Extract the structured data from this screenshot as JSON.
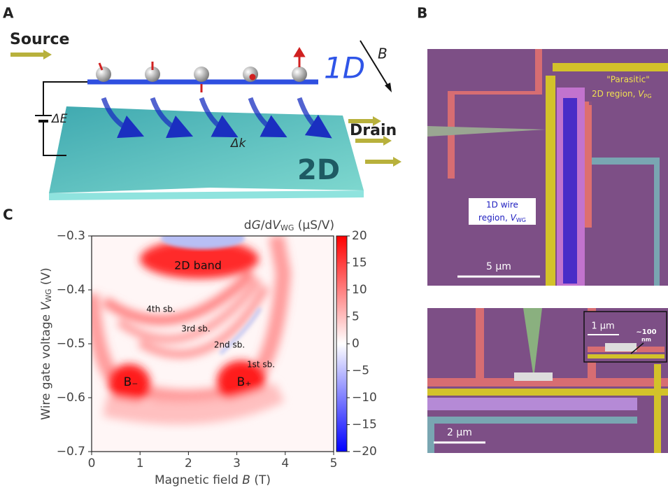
{
  "panel_labels": [
    "A",
    "B",
    "C"
  ],
  "panel_a": {
    "source": "Source",
    "drain": "Drain",
    "label_1d": "1D",
    "label_2d": "2D",
    "field": "B",
    "delta_e": "ΔE",
    "delta_k": "Δk"
  },
  "panel_b": {
    "parasitic_1": "\"Parasitic\"",
    "parasitic_2": [
      "2D region, ",
      "V",
      "PG"
    ],
    "wire_1": "1D wire",
    "wire_2": [
      "region, ",
      "V",
      "WG"
    ],
    "scale_top": "5 μm",
    "scale_bottom": "2 μm",
    "scale_inset": "1 μm",
    "scale_nm": "~100",
    "scale_nm_unit": "nm"
  },
  "chart_data": {
    "type": "heatmap",
    "xlabel": [
      "Magnetic field ",
      "B",
      " (T)"
    ],
    "ylabel": [
      "Wire gate voltage ",
      "V",
      "WG",
      " (V)"
    ],
    "colorbar_label": [
      "d",
      "G",
      "/d",
      "V",
      "WG",
      " (μS/V)"
    ],
    "xlim": [
      0,
      5
    ],
    "xticks": [
      0,
      1,
      2,
      3,
      4,
      5
    ],
    "ylim": [
      -0.7,
      -0.3
    ],
    "yticks": [
      {
        "value": -0.7,
        "label": "−0.7"
      },
      {
        "value": -0.6,
        "label": "−0.6"
      },
      {
        "value": -0.5,
        "label": "−0.5"
      },
      {
        "value": -0.4,
        "label": "−0.4"
      },
      {
        "value": -0.3,
        "label": "−0.3"
      }
    ],
    "clim": [
      -20,
      20
    ],
    "cticks": [
      {
        "value": -20,
        "label": "−20"
      },
      {
        "value": -15,
        "label": "−15"
      },
      {
        "value": -10,
        "label": "−10"
      },
      {
        "value": -5,
        "label": "−5"
      },
      0,
      5,
      10,
      15,
      20
    ],
    "annotations": [
      "2D band",
      "4th sb.",
      "3rd sb.",
      "2nd sb.",
      "1st sb.",
      "B₋",
      "B₊"
    ]
  }
}
